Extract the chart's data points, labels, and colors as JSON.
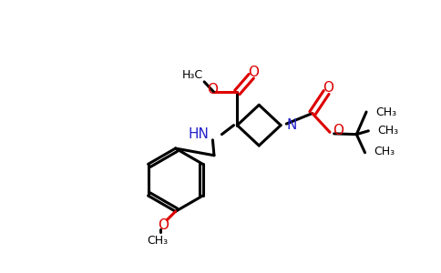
{
  "bg_color": "#ffffff",
  "black": "#000000",
  "red": "#dd0000",
  "blue": "#2222cc",
  "lw": 2.2,
  "figsize": [
    4.84,
    3.0
  ],
  "dpi": 100,
  "xlim": [
    0,
    484
  ],
  "ylim": [
    0,
    300
  ]
}
